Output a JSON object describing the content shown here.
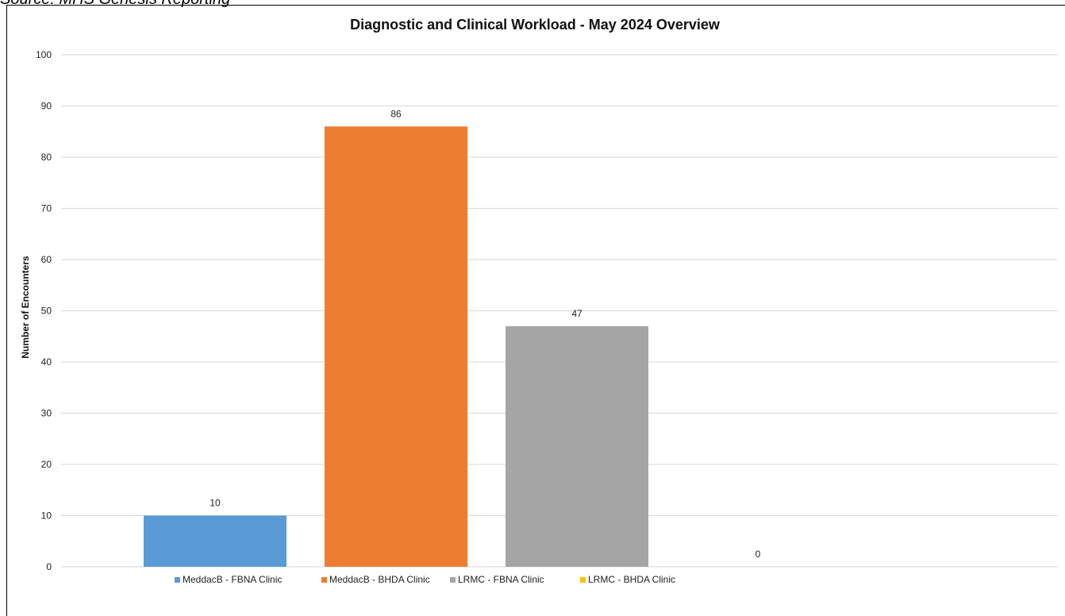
{
  "source_caption": "Source: MHS Genesis Reporting",
  "chart_data": {
    "type": "bar",
    "title": "Diagnostic and Clinical Workload - May 2024 Overview",
    "ylabel": "Number of Encounters",
    "xlabel": "",
    "ylim": [
      0,
      100
    ],
    "ytick_step": 10,
    "grid": true,
    "legend_position": "bottom-left",
    "series": [
      {
        "name": "MeddacB - FBNA Clinic",
        "value": 10,
        "color": "#5B9BD5"
      },
      {
        "name": "MeddacB - BHDA Clinic",
        "value": 86,
        "color": "#ED7D31"
      },
      {
        "name": "LRMC - FBNA Clinic",
        "value": 47,
        "color": "#A5A5A5"
      },
      {
        "name": "LRMC - BHDA Clinic",
        "value": 0,
        "color": "#FFC000"
      }
    ]
  }
}
